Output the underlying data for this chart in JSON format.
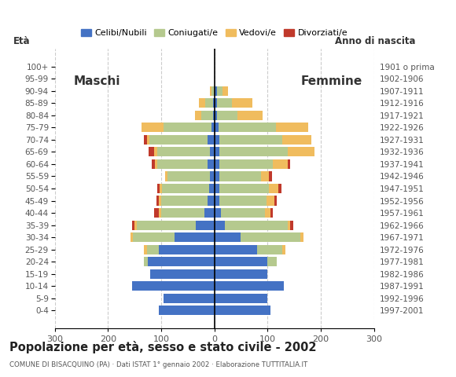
{
  "age_groups": [
    "100+",
    "95-99",
    "90-94",
    "85-89",
    "80-84",
    "75-79",
    "70-74",
    "65-69",
    "60-64",
    "55-59",
    "50-54",
    "45-49",
    "40-44",
    "35-39",
    "30-34",
    "25-29",
    "20-24",
    "15-19",
    "10-14",
    "5-9",
    "0-4"
  ],
  "birth_years": [
    "1901 o prima",
    "1902-1906",
    "1907-1911",
    "1912-1916",
    "1917-1921",
    "1922-1926",
    "1927-1931",
    "1932-1936",
    "1937-1941",
    "1942-1946",
    "1947-1951",
    "1952-1956",
    "1957-1961",
    "1962-1966",
    "1967-1971",
    "1972-1976",
    "1977-1981",
    "1982-1986",
    "1987-1991",
    "1992-1996",
    "1997-2001"
  ],
  "males": {
    "celibe": [
      0,
      0,
      0,
      2,
      3,
      5,
      12,
      8,
      12,
      8,
      10,
      12,
      18,
      35,
      75,
      105,
      125,
      120,
      155,
      95,
      105
    ],
    "coniugato": [
      0,
      0,
      5,
      15,
      22,
      90,
      110,
      100,
      95,
      80,
      88,
      88,
      82,
      110,
      78,
      22,
      8,
      0,
      0,
      0,
      0
    ],
    "vedovo": [
      0,
      0,
      4,
      12,
      12,
      42,
      5,
      5,
      5,
      5,
      5,
      5,
      5,
      5,
      5,
      5,
      0,
      0,
      0,
      0,
      0
    ],
    "divorziato": [
      0,
      0,
      0,
      0,
      0,
      0,
      5,
      10,
      5,
      0,
      5,
      4,
      8,
      5,
      0,
      0,
      0,
      0,
      0,
      0,
      0
    ]
  },
  "females": {
    "nubile": [
      0,
      0,
      5,
      5,
      5,
      8,
      10,
      10,
      10,
      10,
      10,
      10,
      12,
      20,
      50,
      80,
      100,
      100,
      130,
      100,
      105
    ],
    "coniugata": [
      0,
      0,
      10,
      28,
      38,
      108,
      118,
      128,
      100,
      78,
      93,
      88,
      83,
      118,
      112,
      48,
      18,
      0,
      0,
      0,
      0
    ],
    "vedova": [
      0,
      0,
      10,
      38,
      48,
      60,
      55,
      50,
      28,
      15,
      18,
      15,
      10,
      5,
      5,
      5,
      0,
      0,
      0,
      0,
      0
    ],
    "divorziata": [
      0,
      0,
      0,
      0,
      0,
      0,
      0,
      0,
      5,
      5,
      5,
      5,
      5,
      5,
      0,
      0,
      0,
      0,
      0,
      0,
      0
    ]
  },
  "colors": {
    "celibe": "#4472c4",
    "coniugato": "#b5c98e",
    "vedovo": "#f0bc5e",
    "divorziato": "#c0392b"
  },
  "xlim": 300,
  "title": "Popolazione per età, sesso e stato civile - 2002",
  "subtitle": "COMUNE DI BISACQUINO (PA) · Dati ISTAT 1° gennaio 2002 · Elaborazione TUTTITALIA.IT",
  "ylabel_left": "Età",
  "ylabel_right": "Anno di nascita",
  "label_maschi": "Maschi",
  "label_femmine": "Femmine",
  "legend_labels": [
    "Celibi/Nubili",
    "Coniugati/e",
    "Vedovi/e",
    "Divorziati/e"
  ]
}
